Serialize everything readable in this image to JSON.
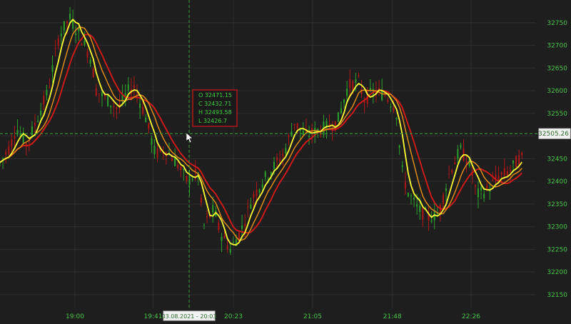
{
  "chart_data": {
    "type": "line",
    "chart_style": "candlestick with moving averages",
    "x_ticks": [
      "19:00",
      "19:41",
      "20:23",
      "21:05",
      "21:48",
      "22:26"
    ],
    "y_ticks": [
      32150,
      32200,
      32250,
      32300,
      32350,
      32400,
      32450,
      32500,
      32550,
      32600,
      32650,
      32700,
      32750
    ],
    "ylim": [
      32120,
      32800
    ],
    "crosshair": {
      "price_label": "32505.26",
      "price": 32505.26,
      "time_label": "03.08.2021 - 20:03",
      "time_index": 0.37
    },
    "ohlc_tooltip": {
      "open": "O  32471.15",
      "close": "C  32432.71",
      "high": "H  32493.58",
      "low": "L  32426.7"
    },
    "price_path": [
      [
        0.0,
        32440
      ],
      [
        0.02,
        32480
      ],
      [
        0.03,
        32520
      ],
      [
        0.05,
        32480
      ],
      [
        0.07,
        32540
      ],
      [
        0.09,
        32600
      ],
      [
        0.11,
        32720
      ],
      [
        0.13,
        32760
      ],
      [
        0.15,
        32720
      ],
      [
        0.17,
        32670
      ],
      [
        0.18,
        32600
      ],
      [
        0.2,
        32580
      ],
      [
        0.22,
        32560
      ],
      [
        0.24,
        32600
      ],
      [
        0.25,
        32610
      ],
      [
        0.27,
        32550
      ],
      [
        0.29,
        32460
      ],
      [
        0.31,
        32470
      ],
      [
        0.33,
        32440
      ],
      [
        0.35,
        32400
      ],
      [
        0.37,
        32420
      ],
      [
        0.38,
        32300
      ],
      [
        0.4,
        32340
      ],
      [
        0.41,
        32290
      ],
      [
        0.43,
        32250
      ],
      [
        0.45,
        32290
      ],
      [
        0.47,
        32360
      ],
      [
        0.49,
        32400
      ],
      [
        0.51,
        32430
      ],
      [
        0.53,
        32460
      ],
      [
        0.55,
        32530
      ],
      [
        0.57,
        32500
      ],
      [
        0.59,
        32510
      ],
      [
        0.61,
        32520
      ],
      [
        0.63,
        32530
      ],
      [
        0.65,
        32610
      ],
      [
        0.67,
        32620
      ],
      [
        0.68,
        32580
      ],
      [
        0.7,
        32600
      ],
      [
        0.72,
        32590
      ],
      [
        0.74,
        32560
      ],
      [
        0.75,
        32430
      ],
      [
        0.76,
        32380
      ],
      [
        0.78,
        32340
      ],
      [
        0.8,
        32320
      ],
      [
        0.82,
        32330
      ],
      [
        0.84,
        32420
      ],
      [
        0.86,
        32470
      ],
      [
        0.88,
        32430
      ],
      [
        0.89,
        32370
      ],
      [
        0.91,
        32380
      ],
      [
        0.93,
        32410
      ],
      [
        0.95,
        32420
      ],
      [
        0.97,
        32450
      ]
    ],
    "series": [
      {
        "name": "",
        "role": "price",
        "color": "#2ca02c"
      },
      {
        "name": "",
        "role": "ma-fast",
        "color": "#ffff33"
      },
      {
        "name": "",
        "role": "ma-mid",
        "color": "#e08a1a"
      },
      {
        "name": "",
        "role": "ma-slow",
        "color": "#cc1a1a"
      }
    ],
    "grid": true,
    "background": "#1e1e1e",
    "axis_color": "#49c449",
    "crosshair_color": "#3aa63a"
  }
}
